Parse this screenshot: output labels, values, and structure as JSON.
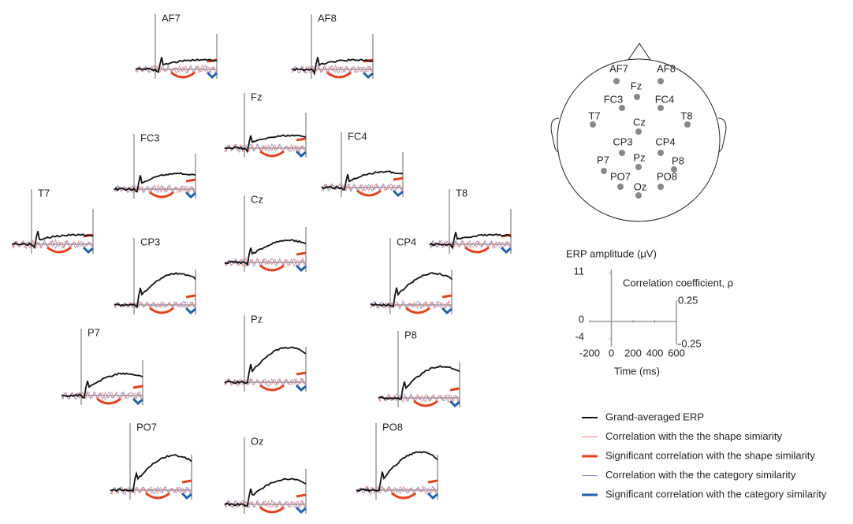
{
  "panels": [
    "AF7",
    "AF8",
    "Fz",
    "FC3",
    "FC4",
    "T7",
    "T8",
    "Cz",
    "CP3",
    "CP4",
    "Pz",
    "P7",
    "P8",
    "PO7",
    "Oz",
    "PO8"
  ],
  "head": {
    "electrodes": [
      "AF7",
      "AF8",
      "Fz",
      "FC3",
      "FC4",
      "T7",
      "Cz",
      "T8",
      "CP3",
      "CP4",
      "P7",
      "Pz",
      "P8",
      "PO7",
      "PO8",
      "Oz"
    ]
  },
  "scale": {
    "y_label": "ERP amplitude (μV)",
    "y2_label": "Correlation coefficient, ρ",
    "x_label": "Time (ms)",
    "ylim": [
      -4,
      11
    ],
    "yticks": [
      11,
      0,
      -4
    ],
    "y2lim": [
      -0.25,
      0.25
    ],
    "y2ticks": [
      0.25,
      -0.25
    ],
    "xlim": [
      -200,
      600
    ],
    "xticks": [
      -200,
      0,
      200,
      400,
      600
    ]
  },
  "legend": [
    {
      "name": "Grand-averaged ERP",
      "color": "#111111"
    },
    {
      "name": "Correlation with the the shape simiarity",
      "color": "#f08070"
    },
    {
      "name": "Significant correlation with the shape similarity",
      "color": "#e8401c"
    },
    {
      "name": "Correlation with the the category similarity",
      "color": "#9090d0"
    },
    {
      "name": "Significant correlation with the category similarity",
      "color": "#1f5fae"
    }
  ]
}
